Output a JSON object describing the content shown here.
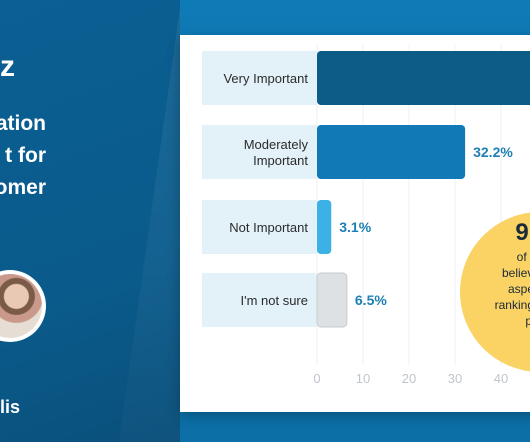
{
  "banner": {
    "brand_fragment": "z",
    "headline_lines": [
      "ation",
      "t for",
      "omer"
    ],
    "author_fragment": "lis"
  },
  "colors": {
    "bar_dark": "#0d5b87",
    "bar_mid": "#1279b7",
    "bar_light": "#3bb1e6",
    "bar_grey": "#dde1e3",
    "label_bg": "#e3f1f9",
    "callout": "#fbd264"
  },
  "callout": {
    "big": "9",
    "lines": [
      "of m",
      "believe",
      "aspec",
      "rankings",
      "p"
    ]
  },
  "chart_data": {
    "type": "bar",
    "orientation": "horizontal",
    "categories": [
      "Very Important",
      "Moderately Important",
      "Not Important",
      "I'm not sure"
    ],
    "category_lines": [
      [
        "Very Important"
      ],
      [
        "Moderately",
        "Important"
      ],
      [
        "Not Important"
      ],
      [
        "I'm not sure"
      ]
    ],
    "values": [
      58.2,
      32.2,
      3.1,
      6.5
    ],
    "value_labels": [
      "",
      "32.2%",
      "3.1%",
      "6.5%"
    ],
    "xlim": [
      0,
      60
    ],
    "x_ticks": [
      0,
      10,
      20,
      30,
      40
    ],
    "grid": true
  }
}
